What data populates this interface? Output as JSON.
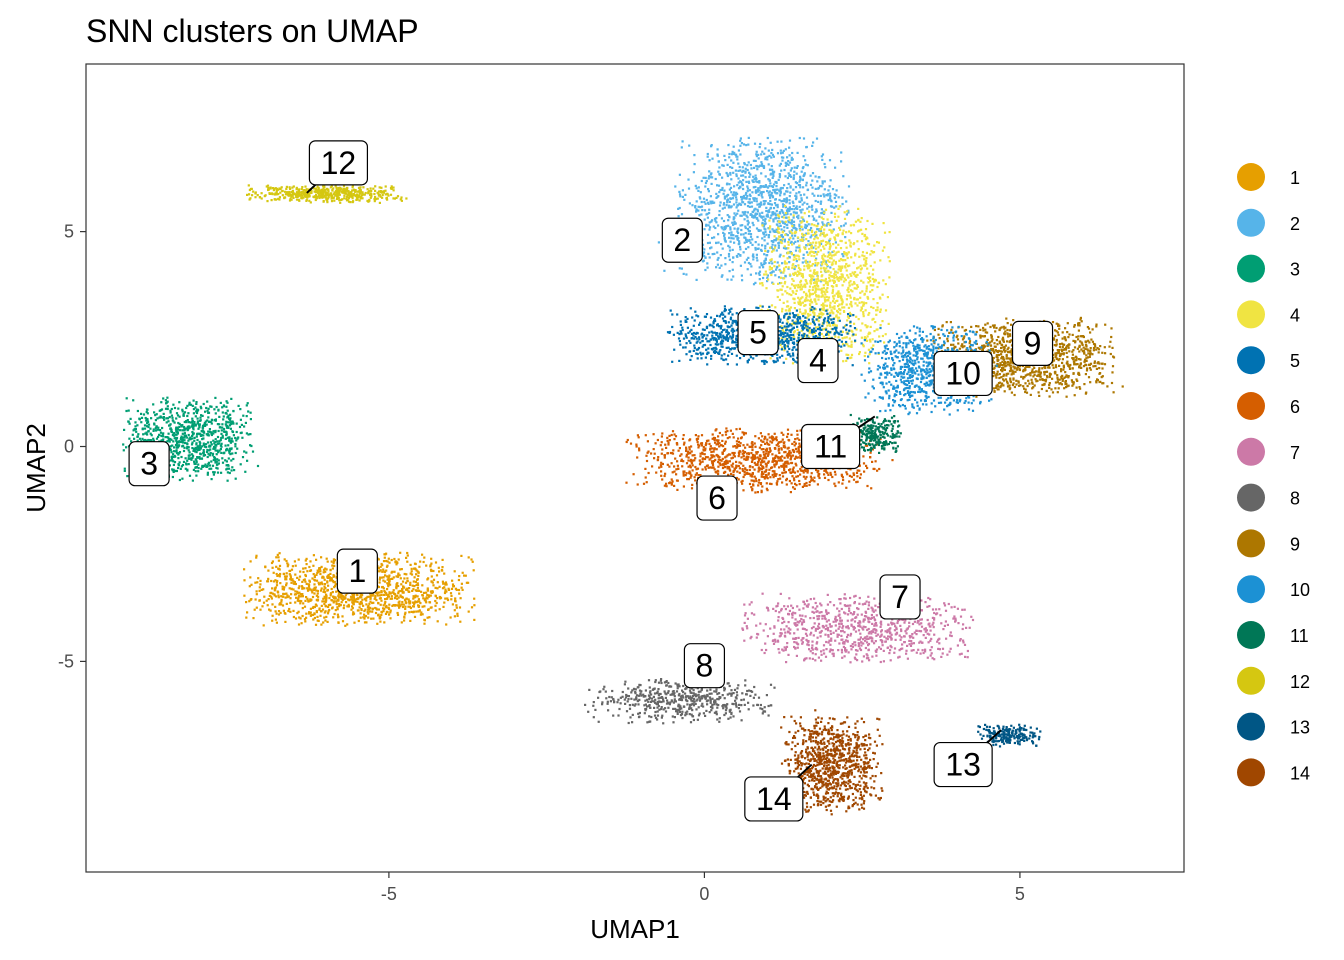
{
  "chart_data": {
    "type": "scatter",
    "title": "SNN clusters on UMAP",
    "xlabel": "UMAP1",
    "ylabel": "UMAP2",
    "xlim": [
      -9.8,
      7.6
    ],
    "ylim": [
      -9.9,
      8.9
    ],
    "xticks": [
      -5,
      0,
      5
    ],
    "yticks": [
      -5,
      0,
      5
    ],
    "xtick_labels": [
      "-5",
      "0",
      "5"
    ],
    "ytick_labels": [
      "-5",
      "0",
      "5"
    ],
    "grid": false,
    "legend_position": "right",
    "legend": [
      {
        "name": "1",
        "color": "#E69F00"
      },
      {
        "name": "2",
        "color": "#56B4E9"
      },
      {
        "name": "3",
        "color": "#009E73"
      },
      {
        "name": "4",
        "color": "#F0E442"
      },
      {
        "name": "5",
        "color": "#0072B2"
      },
      {
        "name": "6",
        "color": "#D55E00"
      },
      {
        "name": "7",
        "color": "#CC79A7"
      },
      {
        "name": "8",
        "color": "#666666"
      },
      {
        "name": "9",
        "color": "#AD7700"
      },
      {
        "name": "10",
        "color": "#1C91D4"
      },
      {
        "name": "11",
        "color": "#007756"
      },
      {
        "name": "12",
        "color": "#D5C711"
      },
      {
        "name": "13",
        "color": "#005685"
      },
      {
        "name": "14",
        "color": "#A04700"
      }
    ],
    "clusters": [
      {
        "name": "1",
        "color": "#E69F00",
        "center": [
          -5.5,
          -3.3
        ],
        "spread": [
          1.6,
          0.75
        ],
        "n": 1300,
        "label_at": [
          -5.5,
          -2.9
        ],
        "point_at": [
          -5.5,
          -2.9
        ]
      },
      {
        "name": "2",
        "color": "#56B4E9",
        "center": [
          0.9,
          5.5
        ],
        "spread": [
          1.2,
          1.5
        ],
        "n": 1300,
        "label_at": [
          -0.35,
          4.8
        ],
        "point_at": [
          -0.35,
          4.8
        ]
      },
      {
        "name": "3",
        "color": "#009E73",
        "center": [
          -8.2,
          0.2
        ],
        "spread": [
          0.9,
          0.85
        ],
        "n": 900,
        "label_at": [
          -8.8,
          -0.4
        ],
        "point_at": [
          -8.8,
          -0.4
        ]
      },
      {
        "name": "4",
        "color": "#F0E442",
        "center": [
          1.9,
          3.8
        ],
        "spread": [
          0.9,
          1.6
        ],
        "n": 1100,
        "label_at": [
          1.8,
          2.0
        ],
        "point_at": [
          1.8,
          2.0
        ]
      },
      {
        "name": "5",
        "color": "#0072B2",
        "center": [
          0.9,
          2.6
        ],
        "spread": [
          1.3,
          0.6
        ],
        "n": 900,
        "label_at": [
          0.85,
          2.65
        ],
        "point_at": [
          0.85,
          2.65
        ]
      },
      {
        "name": "6",
        "color": "#D55E00",
        "center": [
          0.8,
          -0.3
        ],
        "spread": [
          1.8,
          0.65
        ],
        "n": 1100,
        "label_at": [
          0.2,
          -1.2
        ],
        "point_at": [
          0.2,
          -1.2
        ]
      },
      {
        "name": "7",
        "color": "#CC79A7",
        "center": [
          2.4,
          -4.2
        ],
        "spread": [
          1.6,
          0.7
        ],
        "n": 800,
        "label_at": [
          3.1,
          -3.5
        ],
        "point_at": [
          3.1,
          -3.5
        ]
      },
      {
        "name": "8",
        "color": "#666666",
        "center": [
          -0.4,
          -5.9
        ],
        "spread": [
          1.3,
          0.45
        ],
        "n": 500,
        "label_at": [
          0.0,
          -5.1
        ],
        "point_at": [
          0.0,
          -5.1
        ]
      },
      {
        "name": "9",
        "color": "#AD7700",
        "center": [
          5.0,
          2.1
        ],
        "spread": [
          1.3,
          0.8
        ],
        "n": 1200,
        "label_at": [
          5.2,
          2.4
        ],
        "point_at": [
          5.2,
          2.4
        ]
      },
      {
        "name": "10",
        "color": "#1C91D4",
        "center": [
          3.5,
          1.8
        ],
        "spread": [
          0.9,
          0.9
        ],
        "n": 800,
        "label_at": [
          4.1,
          1.7
        ],
        "point_at": [
          4.1,
          1.7
        ]
      },
      {
        "name": "11",
        "color": "#007756",
        "center": [
          2.7,
          0.3
        ],
        "spread": [
          0.35,
          0.4
        ],
        "n": 250,
        "label_at": [
          2.0,
          0.0
        ],
        "point_at": [
          2.7,
          0.7
        ]
      },
      {
        "name": "12",
        "color": "#D5C711",
        "center": [
          -6.0,
          5.9
        ],
        "spread": [
          1.1,
          0.18
        ],
        "n": 500,
        "label_at": [
          -5.8,
          6.6
        ],
        "point_at": [
          -6.3,
          5.9
        ]
      },
      {
        "name": "13",
        "color": "#005685",
        "center": [
          4.8,
          -6.7
        ],
        "spread": [
          0.45,
          0.22
        ],
        "n": 200,
        "label_at": [
          4.1,
          -7.4
        ],
        "point_at": [
          4.7,
          -6.6
        ]
      },
      {
        "name": "14",
        "color": "#A04700",
        "center": [
          2.0,
          -7.4
        ],
        "spread": [
          0.7,
          1.0
        ],
        "n": 900,
        "label_at": [
          1.1,
          -8.2
        ],
        "point_at": [
          1.7,
          -7.4
        ]
      }
    ]
  }
}
